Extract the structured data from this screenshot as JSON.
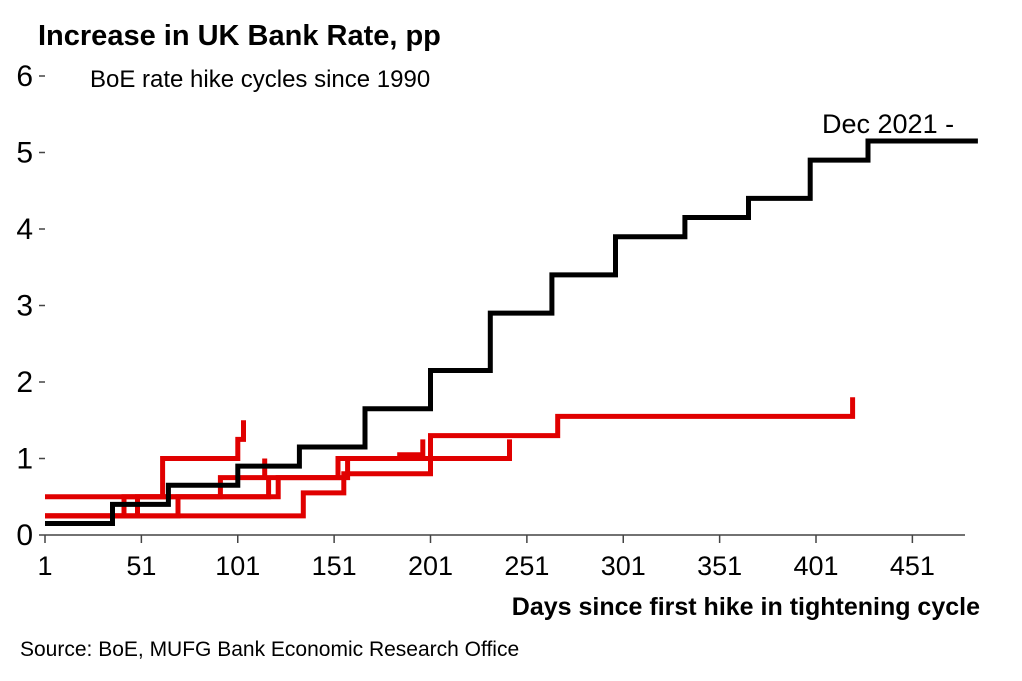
{
  "chart_data": {
    "type": "line",
    "title": "Increase in UK Bank Rate, pp",
    "subtitle": "BoE rate hike cycles since 1990",
    "xlabel": "Days since first hike in tightening cycle",
    "ylabel": "",
    "xlim": [
      1,
      485
    ],
    "ylim": [
      0,
      6
    ],
    "x_ticks": [
      1,
      51,
      101,
      151,
      201,
      251,
      301,
      351,
      401,
      451
    ],
    "y_ticks": [
      0,
      1,
      2,
      3,
      4,
      5,
      6
    ],
    "grid": false,
    "annotation": "Dec 2021 -",
    "source": "Source: BoE, MUFG Bank Economic Research Office",
    "colors": {
      "current": "#000000",
      "past": "#e00000"
    },
    "series": [
      {
        "color": "#000000",
        "x": [
          1,
          36,
          36,
          65,
          65,
          101,
          101,
          133,
          133,
          167,
          167,
          201,
          201,
          232,
          232,
          264,
          264,
          297,
          297,
          333,
          333,
          366,
          366,
          398,
          398,
          428,
          428,
          485
        ],
        "y": [
          0.15,
          0.15,
          0.4,
          0.4,
          0.65,
          0.65,
          0.9,
          0.9,
          1.15,
          1.15,
          1.65,
          1.65,
          2.15,
          2.15,
          2.9,
          2.9,
          3.4,
          3.4,
          3.9,
          3.9,
          4.15,
          4.15,
          4.4,
          4.4,
          4.9,
          4.9,
          5.15,
          5.15
        ]
      },
      {
        "color": "#e00000",
        "x": [
          1,
          62,
          62,
          101,
          101,
          104,
          104
        ],
        "y": [
          0.5,
          0.5,
          1.0,
          1.0,
          1.25,
          1.25,
          1.5
        ]
      },
      {
        "color": "#e00000",
        "x": [
          1,
          42,
          42,
          92,
          92,
          115,
          115
        ],
        "y": [
          0.25,
          0.25,
          0.5,
          0.5,
          0.75,
          0.75,
          1.0
        ]
      },
      {
        "color": "#e00000",
        "x": [
          1,
          70,
          70,
          117,
          117,
          158,
          158,
          185,
          185,
          197,
          197
        ],
        "y": [
          0.25,
          0.25,
          0.5,
          0.5,
          0.75,
          0.75,
          1.0,
          1.0,
          1.05,
          1.05,
          1.25
        ]
      },
      {
        "color": "#e00000",
        "x": [
          1,
          135,
          135,
          156,
          156,
          201,
          201,
          267,
          267,
          420,
          420
        ],
        "y": [
          0.25,
          0.25,
          0.55,
          0.55,
          0.8,
          0.8,
          1.3,
          1.3,
          1.55,
          1.55,
          1.8
        ]
      },
      {
        "color": "#e00000",
        "x": [
          1,
          49,
          49,
          122,
          122,
          153,
          153,
          182,
          182,
          242,
          242
        ],
        "y": [
          0.25,
          0.25,
          0.5,
          0.5,
          0.75,
          0.75,
          1.0,
          1.0,
          1.0,
          1.0,
          1.25
        ]
      }
    ]
  }
}
